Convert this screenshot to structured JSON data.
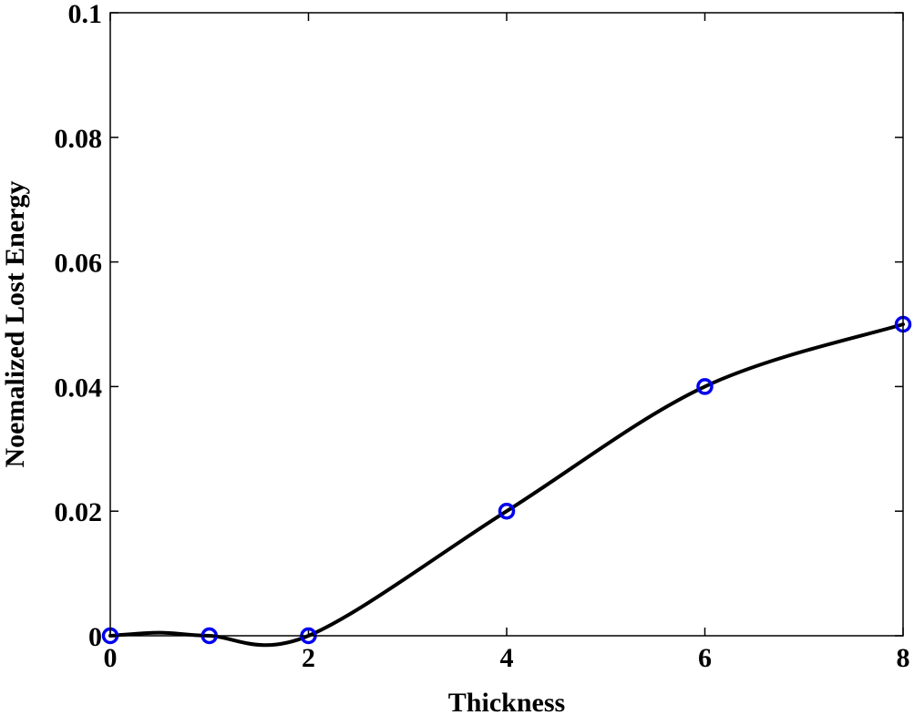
{
  "chart_data": {
    "type": "line",
    "title": "",
    "xlabel": "Thickness",
    "ylabel": "Noemalized Lost Energy",
    "xlim": [
      0,
      8
    ],
    "ylim": [
      0,
      0.1
    ],
    "x_ticks": [
      0,
      2,
      4,
      6,
      8
    ],
    "x_tick_labels": [
      "0",
      "2",
      "4",
      "6",
      "8"
    ],
    "y_ticks": [
      0,
      0.02,
      0.04,
      0.06,
      0.08,
      0.1
    ],
    "y_tick_labels": [
      "0",
      "0.02",
      "0.04",
      "0.06",
      "0.08",
      "0.1"
    ],
    "grid": false,
    "series": [
      {
        "style": "curve",
        "color": "#000000",
        "x": [
          0,
          0.5,
          1,
          2,
          4,
          6,
          8
        ],
        "y": [
          0,
          0.0005,
          0,
          0,
          0.02,
          0.04,
          0.05
        ]
      },
      {
        "style": "markers",
        "marker": "open-circle",
        "color": "#0000ee",
        "x": [
          0,
          1,
          2,
          4,
          6,
          8
        ],
        "y": [
          0,
          0,
          0,
          0.02,
          0.04,
          0.05
        ]
      }
    ]
  }
}
